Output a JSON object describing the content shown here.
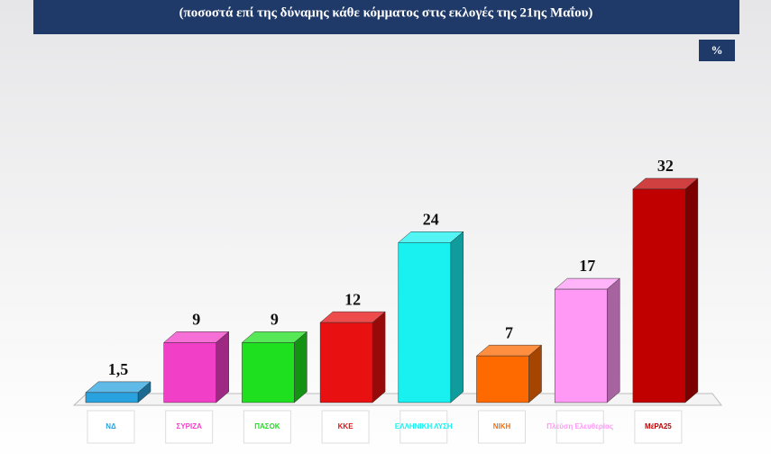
{
  "chart_data": {
    "type": "bar3d",
    "subtitle": "(ποσοστά επί της δύναμης κάθε κόμματος στις εκλογές της 21ης Μαΐου)",
    "unit": "%",
    "categories": [
      "ΝΔ",
      "ΣΥΡΙΖΑ",
      "ΠΑΣΟΚ",
      "ΚΚΕ",
      "ΕΛΛΗΝΙΚΗ ΛΥΣΗ",
      "ΝΙΚΗ",
      "Πλεύση Ελευθερίας",
      "ΜέΡΑ25"
    ],
    "values": [
      1.5,
      9,
      9,
      12,
      24,
      7,
      17,
      32
    ],
    "value_labels": [
      "1,5",
      "9",
      "9",
      "12",
      "24",
      "7",
      "17",
      "32"
    ],
    "colors": [
      "#29a3e0",
      "#f23fc8",
      "#1fe01f",
      "#e81010",
      "#19f0f0",
      "#ff6a00",
      "#ff99f5",
      "#c00000"
    ]
  }
}
